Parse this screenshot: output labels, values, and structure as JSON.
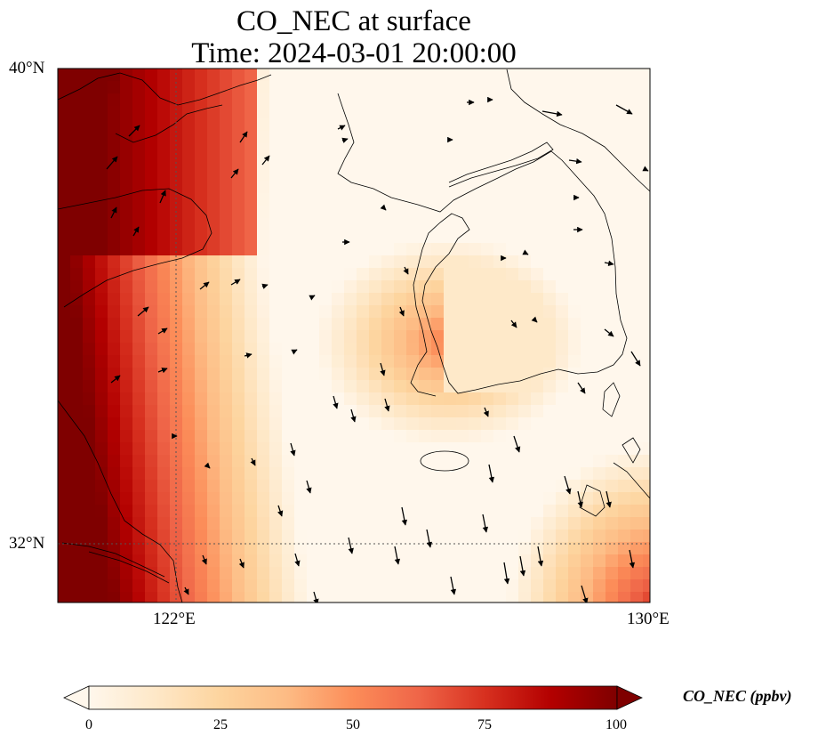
{
  "title": {
    "line1": "CO_NEC at surface",
    "line2": "Time: 2024-03-01 20:00:00"
  },
  "map": {
    "lon_range": [
      119.8,
      130
    ],
    "lat_range": [
      31,
      40
    ],
    "lat_ticks": [
      {
        "value": 40,
        "label": "40°N"
      },
      {
        "value": 32,
        "label": "32°N"
      }
    ],
    "lon_ticks": [
      {
        "value": 122,
        "label": "122°E"
      },
      {
        "value": 130,
        "label": "130°E"
      }
    ],
    "gridlines": "dotted at 122°E and 32°N",
    "field": "CO_NEC concentration (ppbv)",
    "field_description": "very high (>100) over the Chinese mainland in the west and northwest, decreasing eastward over the Yellow Sea; moderate plume near west coast of Korea; low over Korea and East China Sea; moderate in the southeast corner",
    "overlays": [
      "coastlines",
      "wind vectors"
    ]
  },
  "colorbar": {
    "label": "CO_NEC (ppbv)",
    "min": 0,
    "max": 100,
    "ticks": [
      "0",
      "25",
      "50",
      "75",
      "100"
    ],
    "extend": "both",
    "colormap": "OrRd",
    "colors": [
      "#fff7ec",
      "#fee8c8",
      "#fdd49e",
      "#fdbb84",
      "#fc8d59",
      "#ef6548",
      "#d7301f",
      "#b30000",
      "#7f0000"
    ]
  }
}
